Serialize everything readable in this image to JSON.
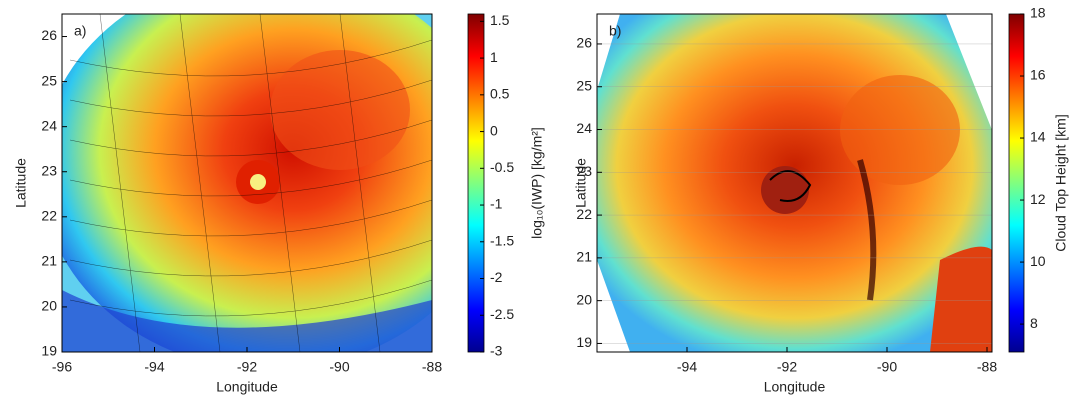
{
  "chart_data": [
    {
      "type": "map",
      "panel_label": "a)",
      "xlabel": "Longitude",
      "ylabel": "Latitude",
      "xlim": [
        -96,
        -88
      ],
      "xticks": [
        -96,
        -94,
        -92,
        -90,
        -88
      ],
      "ylim": [
        19,
        26.5
      ],
      "yticks": [
        19,
        20,
        21,
        22,
        23,
        24,
        25,
        26
      ],
      "grid": false,
      "colorbar": {
        "label": "log₁₀(IWP) [kg/m²]",
        "lim": [
          -3,
          1.6
        ],
        "ticks": [
          -3,
          -2.5,
          -2,
          -1.5,
          -1,
          -0.5,
          0,
          0.5,
          1,
          1.5
        ],
        "colormap": "jet"
      }
    },
    {
      "type": "map",
      "panel_label": "b)",
      "xlabel": "Longitude",
      "ylabel": "Latitude",
      "xlim": [
        -95.8,
        -87.9
      ],
      "xticks": [
        -94,
        -92,
        -90,
        -88
      ],
      "ylim": [
        18.8,
        26.7
      ],
      "yticks": [
        19,
        20,
        21,
        22,
        23,
        24,
        25,
        26
      ],
      "grid": true,
      "colorbar": {
        "label": "Cloud Top Height [km]",
        "lim": [
          7.1,
          18
        ],
        "ticks": [
          8,
          10,
          12,
          14,
          16,
          18
        ],
        "colormap": "jet"
      }
    }
  ]
}
